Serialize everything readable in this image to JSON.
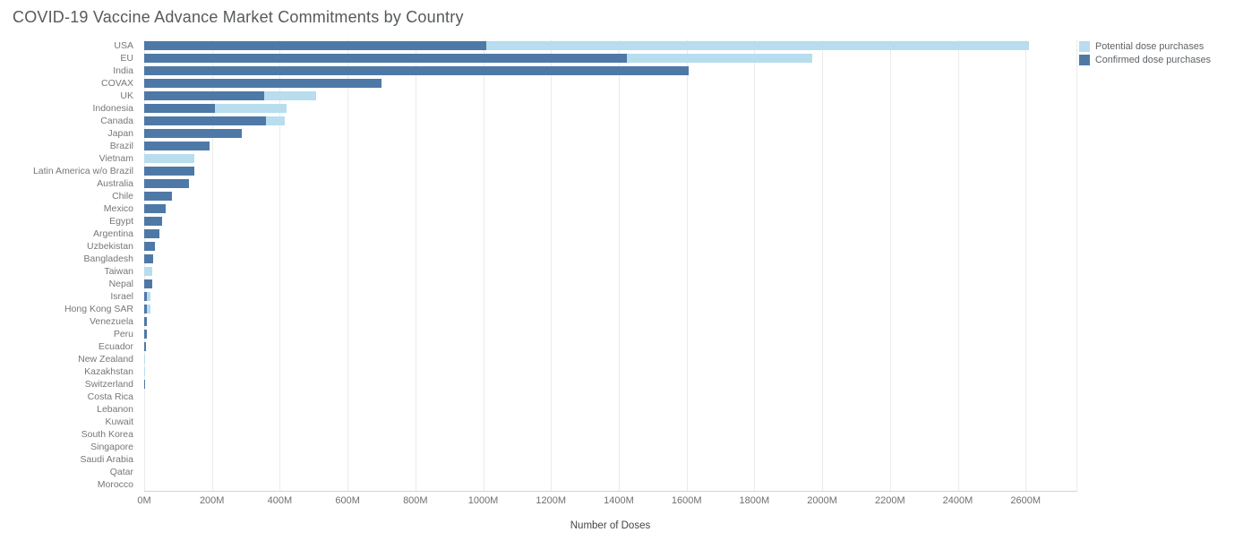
{
  "title": "COVID-19 Vaccine Advance Market Commitments by Country",
  "colors": {
    "confirmed": "#4e79a7",
    "potential": "#b7ddee",
    "gridline": "#ebebeb",
    "axis_line": "#d4d4d4",
    "title_text": "#565a5c",
    "label_text": "#777777"
  },
  "legend": {
    "position": "top-right",
    "items": [
      {
        "label": "Potential dose purchases",
        "color": "#b7ddee",
        "series_key": "potential"
      },
      {
        "label": "Confirmed dose purchases",
        "color": "#4e79a7",
        "series_key": "confirmed"
      }
    ]
  },
  "x_axis": {
    "title": "Number of Doses",
    "tick_labels": [
      "0M",
      "200M",
      "400M",
      "600M",
      "800M",
      "1000M",
      "1200M",
      "1400M",
      "1600M",
      "1800M",
      "2000M",
      "2200M",
      "2400M",
      "2600M"
    ],
    "tick_values": [
      0,
      200,
      400,
      600,
      800,
      1000,
      1200,
      1400,
      1600,
      1800,
      2000,
      2200,
      2400,
      2600
    ]
  },
  "chart_data": {
    "type": "bar",
    "orientation": "horizontal",
    "stacked": true,
    "title": "COVID-19 Vaccine Advance Market Commitments by Country",
    "xlabel": "Number of Doses",
    "ylabel": "",
    "unit": "millions of doses",
    "xlim": [
      0,
      2750
    ],
    "grid": true,
    "legend_position": "top-right",
    "categories": [
      "USA",
      "EU",
      "India",
      "COVAX",
      "UK",
      "Indonesia",
      "Canada",
      "Japan",
      "Brazil",
      "Vietnam",
      "Latin America w/o Brazil",
      "Australia",
      "Chile",
      "Mexico",
      "Egypt",
      "Argentina",
      "Uzbekistan",
      "Bangladesh",
      "Taiwan",
      "Nepal",
      "Israel",
      "Hong Kong SAR",
      "Venezuela",
      "Peru",
      "Ecuador",
      "New Zealand",
      "Kazakhstan",
      "Switzerland",
      "Costa Rica",
      "Lebanon",
      "Kuwait",
      "South Korea",
      "Singapore",
      "Saudi Arabia",
      "Qatar",
      "Morocco"
    ],
    "series": [
      {
        "name": "Confirmed dose purchases",
        "color": "#4e79a7",
        "values": [
          1010,
          1425,
          1605,
          700,
          355,
          208,
          358,
          288,
          194,
          0,
          148,
          131,
          83,
          64,
          54,
          45,
          32,
          26,
          0,
          25,
          8,
          8,
          9,
          8,
          6,
          0,
          0,
          2,
          0,
          0,
          0,
          0,
          0,
          0,
          0,
          0
        ]
      },
      {
        "name": "Potential dose purchases",
        "color": "#b7ddee",
        "values": [
          1600,
          545,
          0,
          0,
          153,
          213,
          56,
          0,
          0,
          148,
          0,
          0,
          0,
          0,
          0,
          0,
          0,
          0,
          25,
          0,
          11,
          10,
          0,
          0,
          0,
          3,
          2,
          0,
          0,
          0,
          0,
          0,
          0,
          0,
          0,
          0
        ]
      }
    ]
  }
}
